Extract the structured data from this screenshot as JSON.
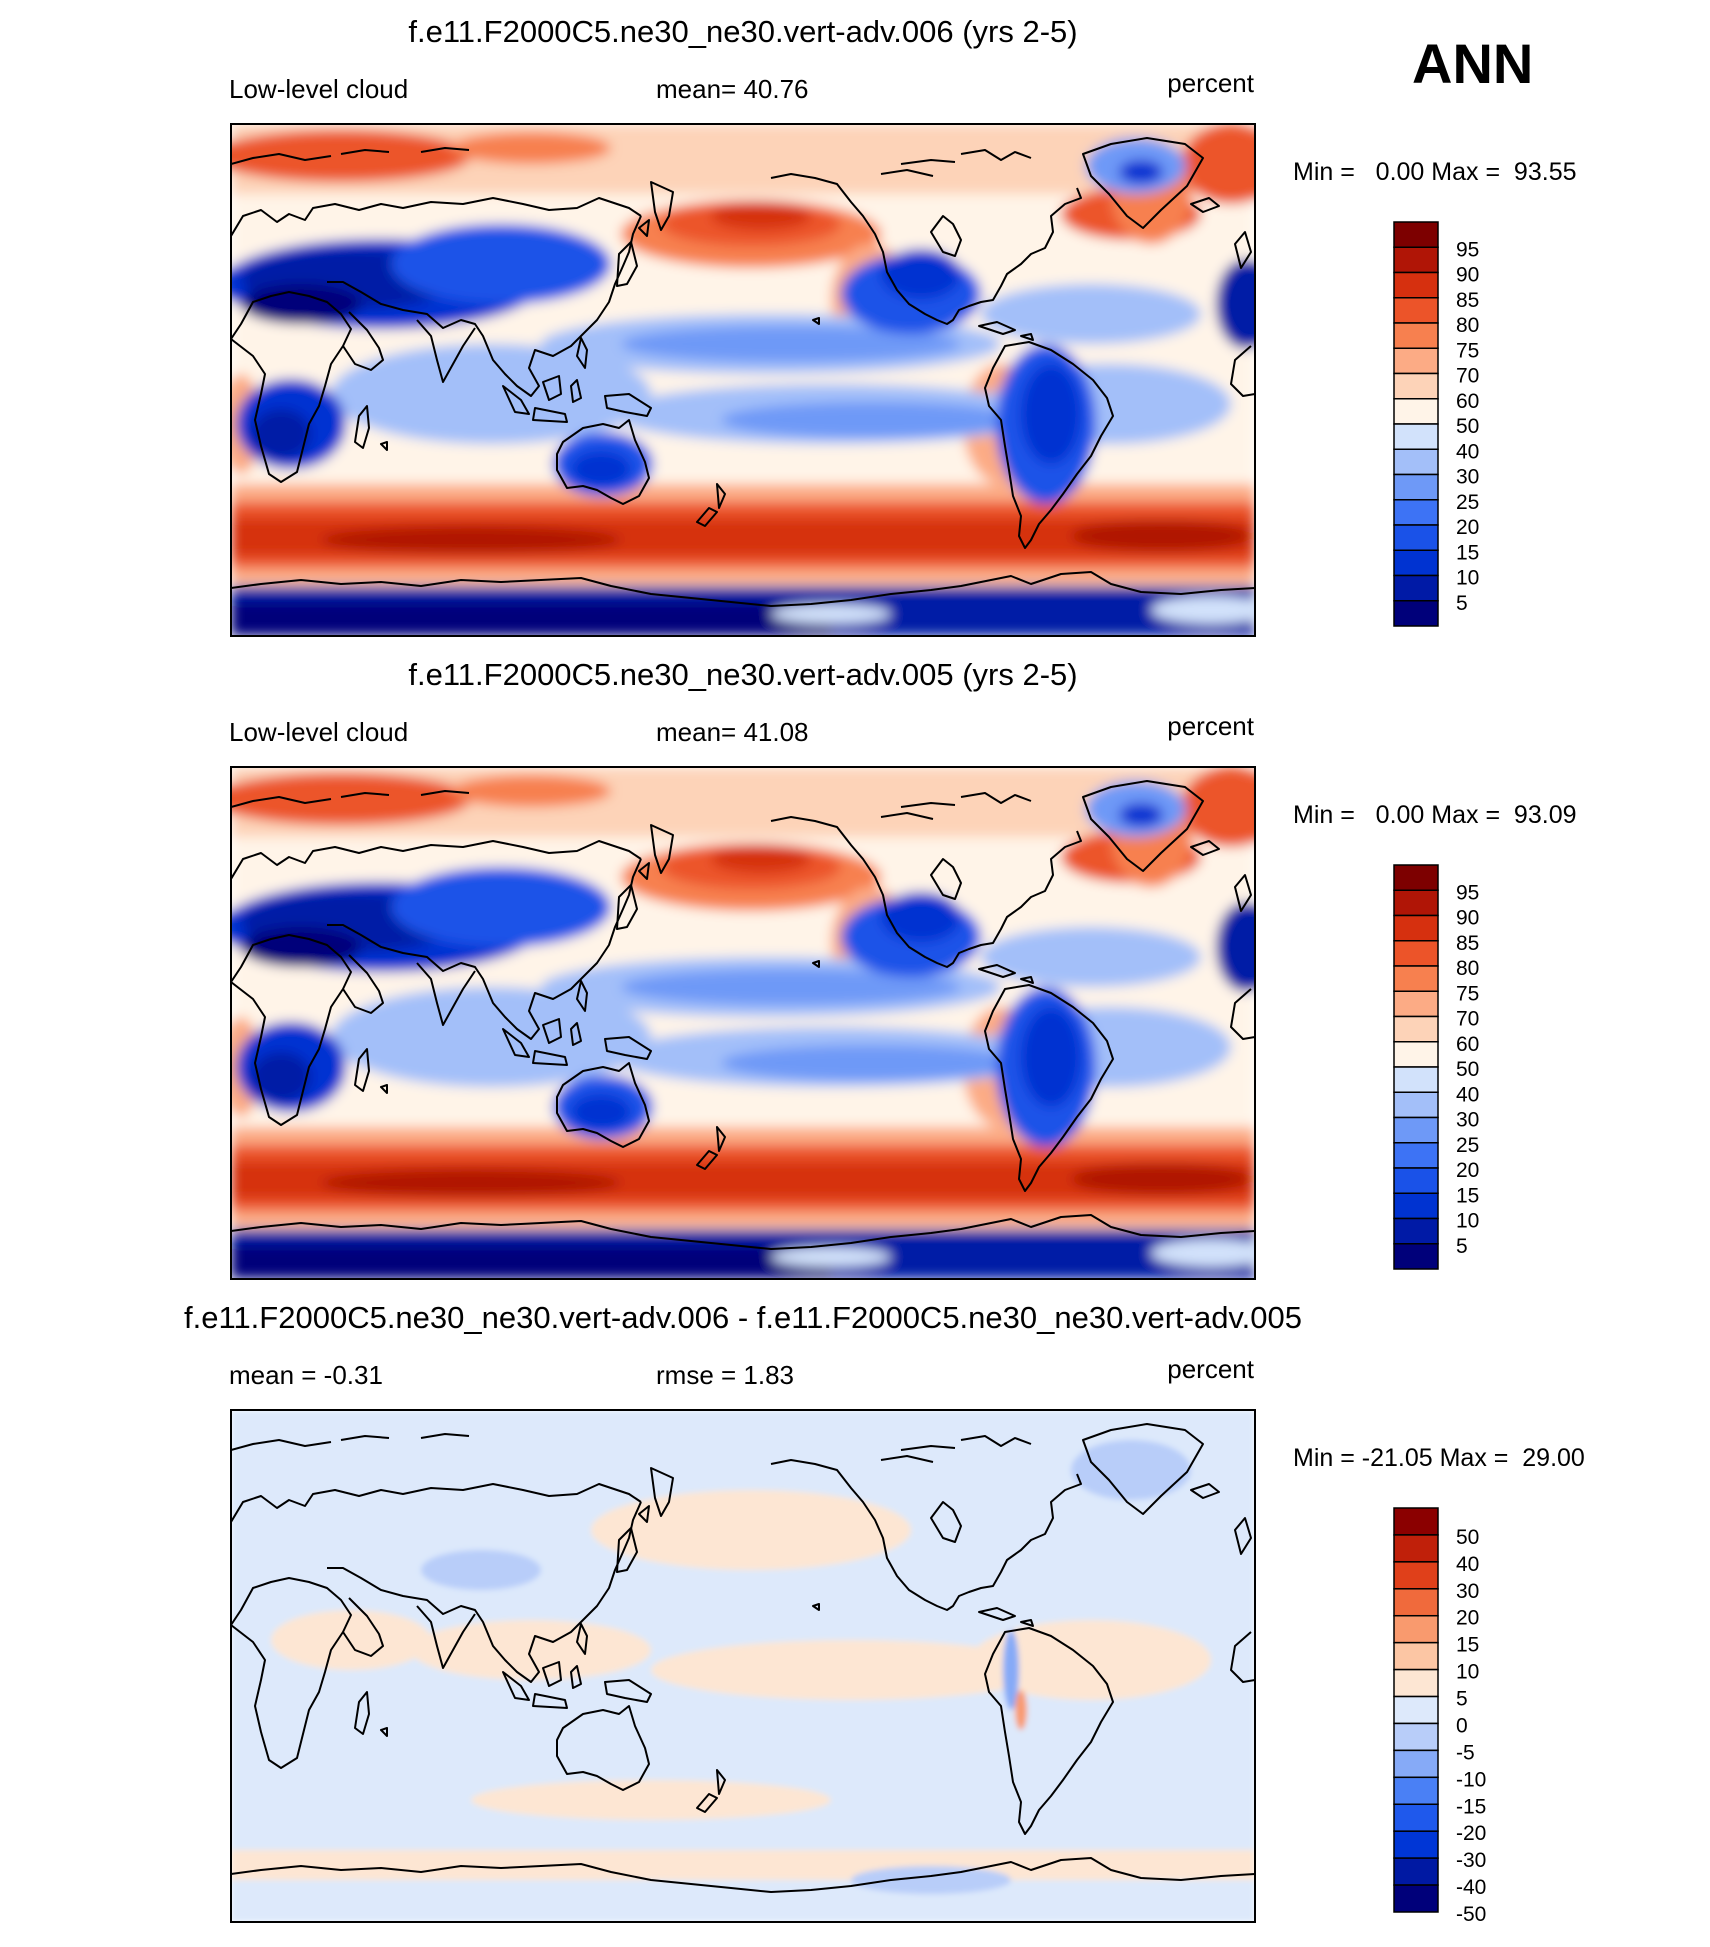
{
  "season": "ANN",
  "colors": {
    "abs": [
      "#00007a",
      "#001aa6",
      "#0033d1",
      "#1a52e8",
      "#3d73f5",
      "#6e99f7",
      "#a3bff9",
      "#d2e2fb",
      "#fff4e8",
      "#fdd3b8",
      "#fcab85",
      "#f7804f",
      "#ec5429",
      "#d6300f",
      "#b01506",
      "#7d0000"
    ],
    "diff": [
      "#00007a",
      "#0019a3",
      "#0036d6",
      "#1f59ec",
      "#4a80f5",
      "#86aaf7",
      "#b8cdf9",
      "#dde9fb",
      "#fde6d3",
      "#fcc6a4",
      "#f99a6e",
      "#f06a3c",
      "#e0401a",
      "#c0200a",
      "#8b0000"
    ],
    "coast": "#000000"
  },
  "chart_data": [
    {
      "type": "heatmap",
      "title": "f.e11.F2000C5.ne30_ne30.vert-adv.006 (yrs 2-5)",
      "left_label": "Low-level cloud",
      "center_label": "mean=  40.76",
      "right_label": "percent",
      "minmax_label": "Min =   0.00 Max =  93.55",
      "variable": "Low-level cloud",
      "units": "percent",
      "mean": 40.76,
      "min": 0.0,
      "max": 93.55,
      "field": "abs",
      "colorbar_levels": [
        "95",
        "90",
        "85",
        "80",
        "75",
        "70",
        "60",
        "50",
        "40",
        "30",
        "25",
        "20",
        "15",
        "10",
        "5"
      ]
    },
    {
      "type": "heatmap",
      "title": "f.e11.F2000C5.ne30_ne30.vert-adv.005 (yrs 2-5)",
      "left_label": "Low-level cloud",
      "center_label": "mean=  41.08",
      "right_label": "percent",
      "minmax_label": "Min =   0.00 Max =  93.09",
      "variable": "Low-level cloud",
      "units": "percent",
      "mean": 41.08,
      "min": 0.0,
      "max": 93.09,
      "field": "abs",
      "colorbar_levels": [
        "95",
        "90",
        "85",
        "80",
        "75",
        "70",
        "60",
        "50",
        "40",
        "30",
        "25",
        "20",
        "15",
        "10",
        "5"
      ]
    },
    {
      "type": "heatmap",
      "title": "f.e11.F2000C5.ne30_ne30.vert-adv.006 - f.e11.F2000C5.ne30_ne30.vert-adv.005",
      "left_label": "mean =  -0.31",
      "center_label": "rmse =   1.83",
      "right_label": "percent",
      "minmax_label": "Min = -21.05 Max =  29.00",
      "units": "percent",
      "mean": -0.31,
      "rmse": 1.83,
      "min": -21.05,
      "max": 29.0,
      "field": "diff",
      "colorbar_levels": [
        "50",
        "40",
        "30",
        "20",
        "15",
        "10",
        "5",
        "0",
        "-5",
        "-10",
        "-15",
        "-20",
        "-30",
        "-40",
        "-50"
      ]
    }
  ]
}
